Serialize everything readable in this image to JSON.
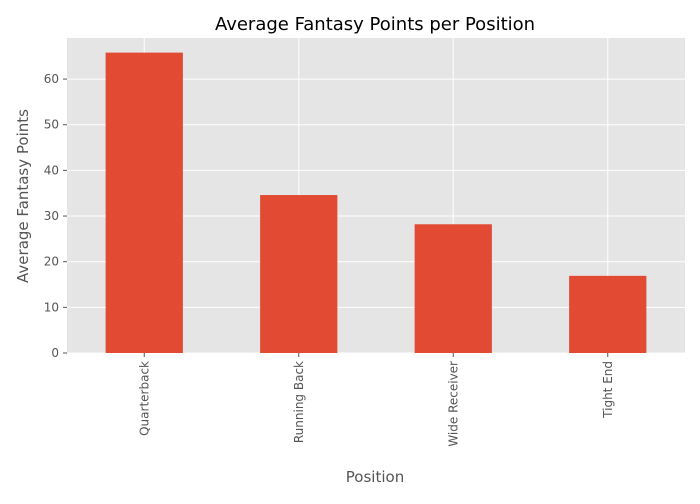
{
  "chart_data": {
    "type": "bar",
    "title": "Average Fantasy Points per Position",
    "xlabel": "Position",
    "ylabel": "Average Fantasy Points",
    "categories": [
      "Quarterback",
      "Running Back",
      "Wide Receiver",
      "Tight End"
    ],
    "values": [
      65.8,
      34.6,
      28.2,
      16.9
    ],
    "ylim": [
      0,
      69
    ],
    "yticks": [
      0,
      10,
      20,
      30,
      40,
      50,
      60
    ],
    "grid": true,
    "bar_color": "#e24a33",
    "background_color": "#e5e5e5",
    "grid_color": "#ffffff"
  }
}
